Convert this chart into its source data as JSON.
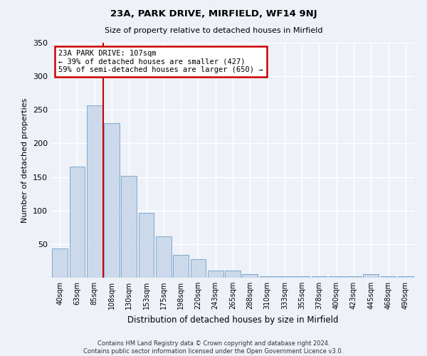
{
  "title": "23A, PARK DRIVE, MIRFIELD, WF14 9NJ",
  "subtitle": "Size of property relative to detached houses in Mirfield",
  "xlabel": "Distribution of detached houses by size in Mirfield",
  "ylabel": "Number of detached properties",
  "bin_labels": [
    "40sqm",
    "63sqm",
    "85sqm",
    "108sqm",
    "130sqm",
    "153sqm",
    "175sqm",
    "198sqm",
    "220sqm",
    "243sqm",
    "265sqm",
    "288sqm",
    "310sqm",
    "333sqm",
    "355sqm",
    "378sqm",
    "400sqm",
    "423sqm",
    "445sqm",
    "468sqm",
    "490sqm"
  ],
  "bar_values": [
    43,
    165,
    257,
    230,
    152,
    97,
    61,
    34,
    28,
    11,
    11,
    5,
    2,
    2,
    2,
    2,
    2,
    2,
    5,
    2,
    2
  ],
  "bar_color": "#ccd9ea",
  "bar_edge_color": "#7aaad0",
  "vline_color": "#cc0000",
  "annotation_title": "23A PARK DRIVE: 107sqm",
  "annotation_line1": "← 39% of detached houses are smaller (427)",
  "annotation_line2": "59% of semi-detached houses are larger (650) →",
  "annotation_box_color": "#cc0000",
  "ylim": [
    0,
    350
  ],
  "yticks": [
    0,
    50,
    100,
    150,
    200,
    250,
    300,
    350
  ],
  "footer_line1": "Contains HM Land Registry data © Crown copyright and database right 2024.",
  "footer_line2": "Contains public sector information licensed under the Open Government Licence v3.0.",
  "bg_color": "#eef2f8",
  "plot_bg_color": "#eef2f8"
}
